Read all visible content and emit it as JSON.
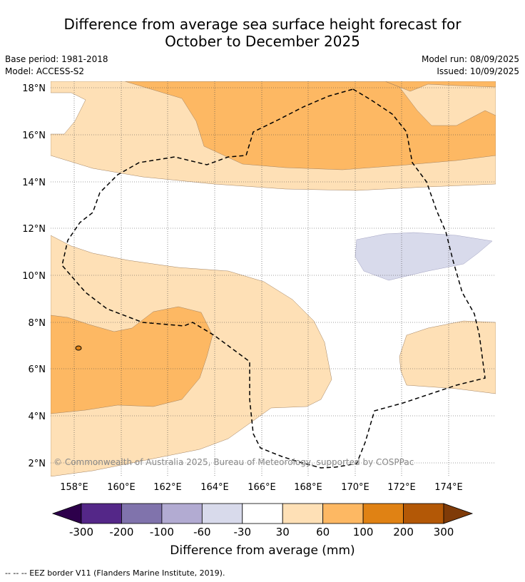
{
  "title_line1": "Difference from average sea surface height forecast for",
  "title_line2": "October to December 2025",
  "base_period": "Base period: 1981-2018",
  "model": "Model: ACCESS-S2",
  "model_run": "Model run: 08/09/2025",
  "issued": "Issued: 10/09/2025",
  "copyright": "© Commonwealth of Australia 2025, Bureau of Meteorology, supported by COSPPac",
  "lat_labels": [
    "18°N",
    "16°N",
    "14°N",
    "12°N",
    "10°N",
    "8°N",
    "6°N",
    "4°N",
    "2°N"
  ],
  "lon_labels": [
    "158°E",
    "160°E",
    "162°E",
    "164°E",
    "166°E",
    "168°E",
    "170°E",
    "172°E",
    "174°E"
  ],
  "colorbar": {
    "title": "Difference from average (mm)",
    "labels": [
      "-300",
      "-200",
      "-100",
      "-60",
      "-30",
      "30",
      "60",
      "100",
      "200",
      "300"
    ],
    "colors": [
      "#2d004b",
      "#542788",
      "#8073ac",
      "#b2abd2",
      "#d8daeb",
      "#ffffff",
      "#fee0b6",
      "#fdb863",
      "#e08214",
      "#b35806",
      "#7f3b08"
    ]
  },
  "footnote": "--  --  -- EEZ border V11 (Flanders Marine Institute, 2019)."
}
